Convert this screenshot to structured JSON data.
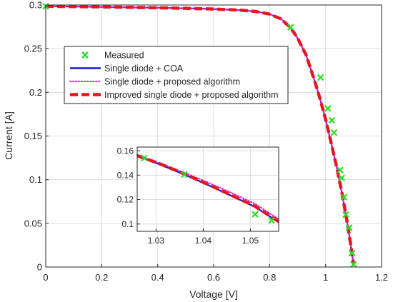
{
  "chart_data": [
    {
      "type": "line",
      "xlabel": "Voltage [V]",
      "ylabel": "Current [A]",
      "xlim": [
        0,
        1.2
      ],
      "ylim": [
        0,
        0.3
      ],
      "xticks": [
        "0",
        "0.2",
        "0.4",
        "0.6",
        "0.8",
        "1",
        "1.2"
      ],
      "yticks": [
        "0",
        "0.05",
        "0.1",
        "0.15",
        "0.2",
        "0.25",
        "0.3"
      ],
      "grid": true,
      "legend_position": "upper-left",
      "series": [
        {
          "name": "Measured",
          "style": "marker-x",
          "color": "#22e022",
          "x": [
            0.0,
            0.875,
            0.982,
            1.008,
            1.022,
            1.03,
            1.052,
            1.058,
            1.066,
            1.072,
            1.084,
            1.094,
            1.1
          ],
          "y": [
            0.2985,
            0.2745,
            0.217,
            0.1815,
            0.168,
            0.154,
            0.111,
            0.102,
            0.08,
            0.06,
            0.045,
            0.016,
            0.003
          ]
        },
        {
          "name": "Single diode + COA",
          "style": "solid",
          "color": "#1414d8",
          "x": [
            0.0,
            0.1,
            0.2,
            0.3,
            0.4,
            0.5,
            0.6,
            0.7,
            0.75,
            0.8,
            0.84,
            0.875,
            0.9,
            0.93,
            0.96,
            0.98,
            1.0,
            1.02,
            1.04,
            1.06,
            1.08,
            1.09,
            1.1
          ],
          "y": [
            0.2985,
            0.2982,
            0.2978,
            0.2973,
            0.2968,
            0.2962,
            0.2954,
            0.294,
            0.2926,
            0.2895,
            0.2842,
            0.274,
            0.262,
            0.243,
            0.214,
            0.193,
            0.169,
            0.142,
            0.114,
            0.082,
            0.046,
            0.025,
            0.003
          ]
        },
        {
          "name": "Single diode + proposed algorithm",
          "style": "dotted",
          "color": "#e020e0",
          "x": [
            0.0,
            0.1,
            0.2,
            0.3,
            0.4,
            0.5,
            0.6,
            0.7,
            0.75,
            0.8,
            0.84,
            0.875,
            0.9,
            0.93,
            0.96,
            0.98,
            1.0,
            1.02,
            1.04,
            1.06,
            1.08,
            1.09,
            1.1
          ],
          "y": [
            0.2985,
            0.2982,
            0.2978,
            0.2973,
            0.2968,
            0.2962,
            0.2954,
            0.294,
            0.2926,
            0.2895,
            0.2842,
            0.274,
            0.262,
            0.243,
            0.214,
            0.193,
            0.169,
            0.142,
            0.114,
            0.082,
            0.046,
            0.025,
            0.003
          ]
        },
        {
          "name": "Improved single diode + proposed algorithm",
          "style": "dashed",
          "color": "#e81414",
          "x": [
            0.0,
            0.1,
            0.2,
            0.3,
            0.4,
            0.5,
            0.6,
            0.7,
            0.75,
            0.8,
            0.84,
            0.875,
            0.9,
            0.93,
            0.96,
            0.98,
            1.0,
            1.02,
            1.04,
            1.06,
            1.08,
            1.09,
            1.1
          ],
          "y": [
            0.2985,
            0.2982,
            0.2978,
            0.2973,
            0.2968,
            0.2962,
            0.2954,
            0.294,
            0.2926,
            0.2895,
            0.2842,
            0.274,
            0.262,
            0.243,
            0.214,
            0.193,
            0.169,
            0.142,
            0.114,
            0.082,
            0.046,
            0.025,
            0.003
          ]
        }
      ]
    },
    {
      "type": "line",
      "role": "inset",
      "xlim": [
        1.026,
        1.056
      ],
      "ylim": [
        0.094,
        0.163
      ],
      "xticks": [
        "1.03",
        "1.04",
        "1.05"
      ],
      "yticks": [
        "0.1",
        "0.12",
        "0.14",
        "0.16"
      ],
      "grid": true,
      "series": [
        {
          "name": "Measured",
          "style": "marker-x",
          "color": "#22e022",
          "x": [
            1.0275,
            1.036,
            1.051,
            1.0545
          ],
          "y": [
            0.154,
            0.1405,
            0.108,
            0.103
          ]
        },
        {
          "name": "Single diode + COA",
          "style": "solid",
          "color": "#1414d8",
          "x": [
            1.026,
            1.031,
            1.036,
            1.041,
            1.046,
            1.051,
            1.056
          ],
          "y": [
            0.156,
            0.1485,
            0.1405,
            0.132,
            0.123,
            0.114,
            0.1015
          ]
        },
        {
          "name": "Single diode + proposed algorithm",
          "style": "dotted",
          "color": "#e020e0",
          "x": [
            1.026,
            1.031,
            1.036,
            1.041,
            1.046,
            1.051,
            1.056
          ],
          "y": [
            0.1565,
            0.1495,
            0.142,
            0.134,
            0.1255,
            0.1165,
            0.104
          ]
        },
        {
          "name": "Improved single diode + proposed algorithm",
          "style": "dashed",
          "color": "#e81414",
          "x": [
            1.026,
            1.031,
            1.036,
            1.041,
            1.046,
            1.051,
            1.056
          ],
          "y": [
            0.156,
            0.149,
            0.141,
            0.1325,
            0.1235,
            0.1145,
            0.102
          ]
        }
      ]
    }
  ]
}
